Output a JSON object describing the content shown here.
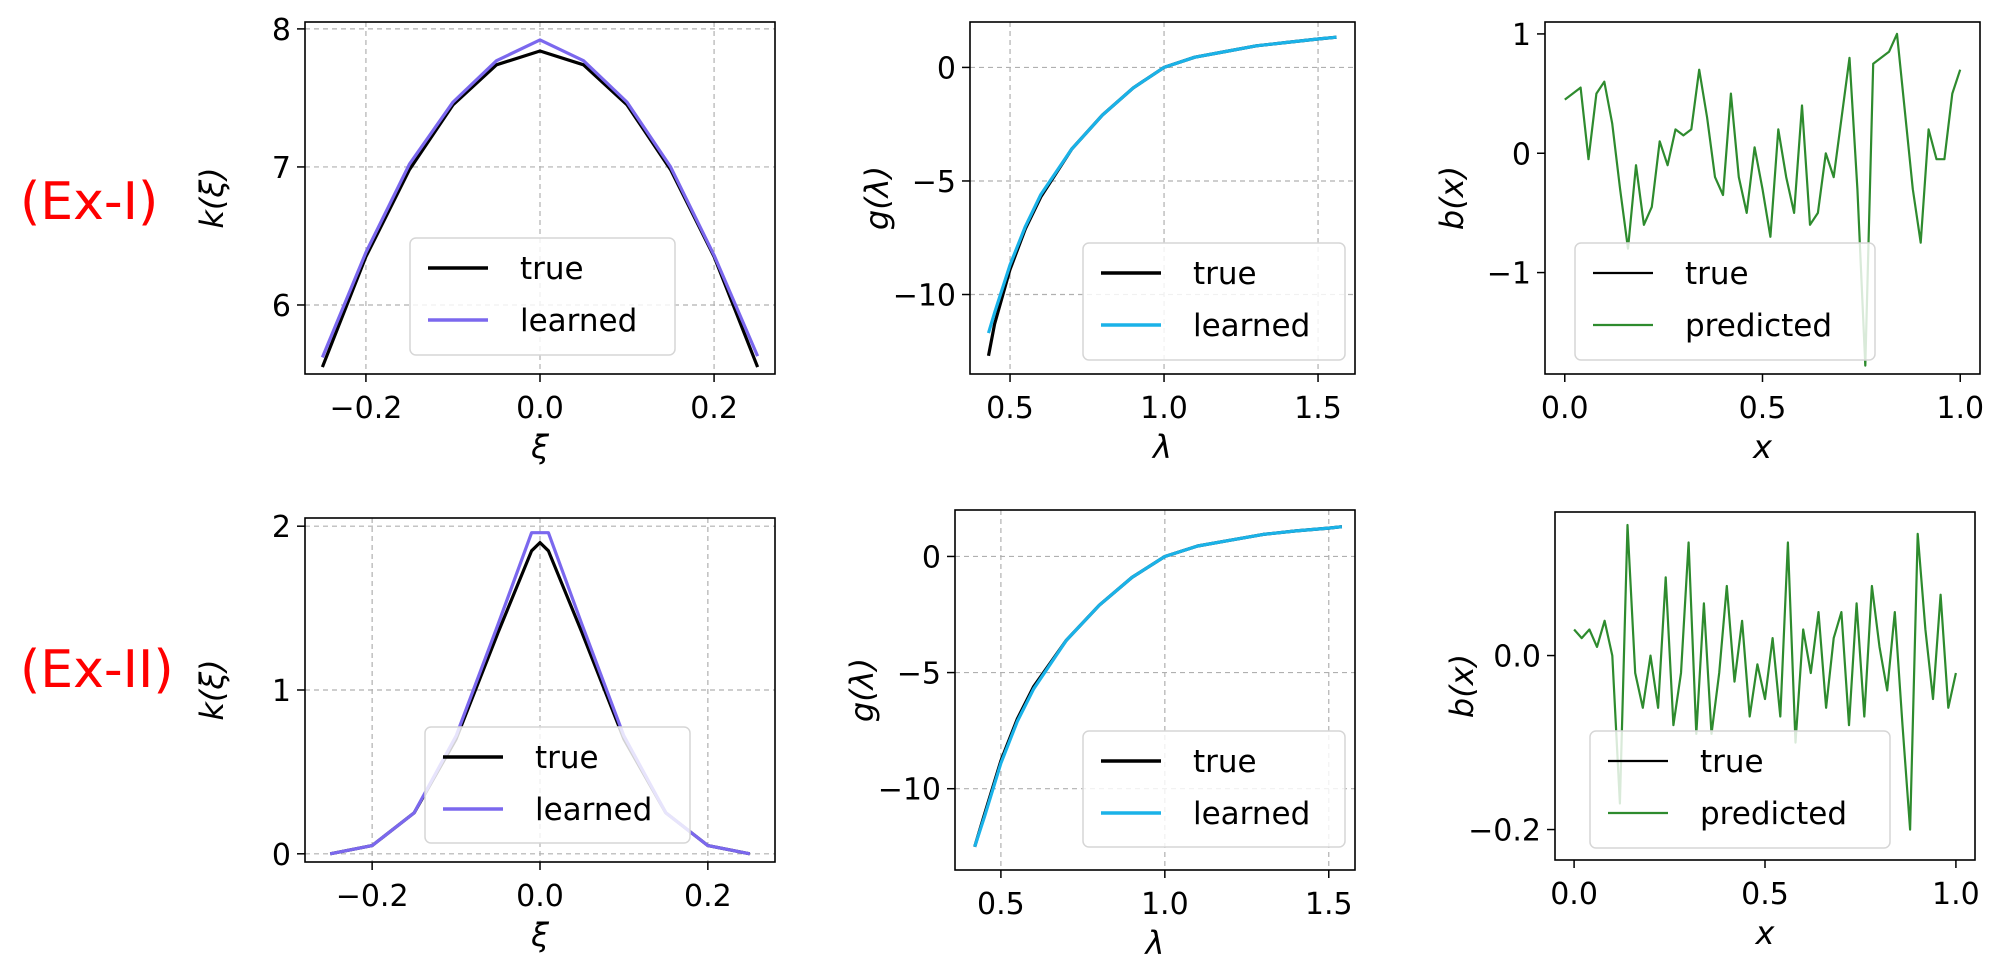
{
  "rows": [
    "(Ex-I)",
    "(Ex-II)"
  ],
  "colors": {
    "true": "#000000",
    "learned_k": "#7b68ee",
    "learned_g": "#1ab2e8",
    "predicted": "#2e8b2e",
    "row_label": "#ff0000"
  },
  "chart_data": [
    {
      "type": "line",
      "row": "(Ex-I)",
      "xlabel": "ξ",
      "ylabel": "k(ξ)",
      "xlim": [
        -0.27,
        0.27
      ],
      "ylim": [
        5.5,
        8.05
      ],
      "xticks": [
        -0.2,
        0.0,
        0.2
      ],
      "xtick_labels": [
        "−0.2",
        "0.0",
        "0.2"
      ],
      "yticks": [
        6,
        7,
        8
      ],
      "ytick_labels": [
        "6",
        "7",
        "8"
      ],
      "grid": true,
      "legend_position": "lower center",
      "series": [
        {
          "name": "true",
          "x": [
            -0.25,
            -0.2,
            -0.15,
            -0.1,
            -0.05,
            0,
            0.05,
            0.1,
            0.15,
            0.2,
            0.25
          ],
          "y": [
            5.55,
            6.35,
            6.98,
            7.45,
            7.74,
            7.84,
            7.74,
            7.45,
            6.98,
            6.35,
            5.55
          ]
        },
        {
          "name": "learned",
          "x": [
            -0.25,
            -0.2,
            -0.15,
            -0.1,
            -0.05,
            0,
            0.05,
            0.1,
            0.15,
            0.2,
            0.25
          ],
          "y": [
            5.62,
            6.38,
            7.02,
            7.47,
            7.77,
            7.92,
            7.77,
            7.47,
            7.0,
            6.36,
            5.63
          ]
        }
      ]
    },
    {
      "type": "line",
      "row": "(Ex-I)",
      "xlabel": "λ",
      "ylabel": "g(λ)",
      "xlim": [
        0.37,
        1.62
      ],
      "ylim": [
        -13.5,
        2.0
      ],
      "xticks": [
        0.5,
        1.0,
        1.5
      ],
      "xtick_labels": [
        "0.5",
        "1.0",
        "1.5"
      ],
      "yticks": [
        -10,
        -5,
        0
      ],
      "ytick_labels": [
        "−10",
        "−5",
        "0"
      ],
      "grid": true,
      "legend_position": "lower right",
      "series": [
        {
          "name": "true",
          "x": [
            0.43,
            0.45,
            0.5,
            0.55,
            0.6,
            0.7,
            0.8,
            0.9,
            1.0,
            1.1,
            1.2,
            1.3,
            1.4,
            1.5,
            1.56
          ],
          "y": [
            -12.7,
            -11.3,
            -8.9,
            -7.1,
            -5.7,
            -3.6,
            -2.1,
            -0.9,
            0.0,
            0.45,
            0.7,
            0.95,
            1.1,
            1.25,
            1.33
          ]
        },
        {
          "name": "learned",
          "x": [
            0.43,
            0.45,
            0.5,
            0.55,
            0.6,
            0.7,
            0.8,
            0.9,
            1.0,
            1.1,
            1.2,
            1.3,
            1.4,
            1.5,
            1.56
          ],
          "y": [
            -11.7,
            -10.8,
            -8.7,
            -7.0,
            -5.6,
            -3.6,
            -2.1,
            -0.9,
            0.0,
            0.45,
            0.7,
            0.95,
            1.1,
            1.25,
            1.33
          ]
        }
      ]
    },
    {
      "type": "line",
      "row": "(Ex-I)",
      "xlabel": "x",
      "ylabel": "b(x)",
      "xlim": [
        -0.05,
        1.05
      ],
      "ylim": [
        -1.85,
        1.1
      ],
      "xticks": [
        0.0,
        0.5,
        1.0
      ],
      "xtick_labels": [
        "0.0",
        "0.5",
        "1.0"
      ],
      "yticks": [
        -1,
        0,
        1
      ],
      "ytick_labels": [
        "−1",
        "0",
        "1"
      ],
      "grid": false,
      "legend_position": "lower left",
      "series": [
        {
          "name": "true",
          "x": [],
          "y": []
        },
        {
          "name": "predicted",
          "x": [
            0.0,
            0.02,
            0.04,
            0.06,
            0.08,
            0.1,
            0.12,
            0.14,
            0.16,
            0.18,
            0.2,
            0.22,
            0.24,
            0.26,
            0.28,
            0.3,
            0.32,
            0.34,
            0.36,
            0.38,
            0.4,
            0.42,
            0.44,
            0.46,
            0.48,
            0.5,
            0.52,
            0.54,
            0.56,
            0.58,
            0.6,
            0.62,
            0.64,
            0.66,
            0.68,
            0.7,
            0.72,
            0.74,
            0.76,
            0.78,
            0.8,
            0.82,
            0.84,
            0.86,
            0.88,
            0.9,
            0.92,
            0.94,
            0.96,
            0.98,
            1.0
          ],
          "y": [
            0.45,
            0.5,
            0.55,
            -0.05,
            0.5,
            0.6,
            0.25,
            -0.3,
            -0.8,
            -0.1,
            -0.6,
            -0.45,
            0.1,
            -0.1,
            0.2,
            0.15,
            0.2,
            0.7,
            0.3,
            -0.2,
            -0.35,
            0.5,
            -0.2,
            -0.5,
            0.05,
            -0.3,
            -0.7,
            0.2,
            -0.2,
            -0.5,
            0.4,
            -0.6,
            -0.5,
            0.0,
            -0.2,
            0.3,
            0.8,
            -0.3,
            -1.78,
            0.75,
            0.8,
            0.85,
            1.0,
            0.35,
            -0.3,
            -0.75,
            0.2,
            -0.05,
            -0.05,
            0.5,
            0.7
          ]
        }
      ]
    },
    {
      "type": "line",
      "row": "(Ex-II)",
      "xlabel": "ξ",
      "ylabel": "k(ξ)",
      "xlim": [
        -0.28,
        0.28
      ],
      "ylim": [
        -0.05,
        2.05
      ],
      "xticks": [
        -0.2,
        0.0,
        0.2
      ],
      "xtick_labels": [
        "−0.2",
        "0.0",
        "0.2"
      ],
      "yticks": [
        0,
        1,
        2
      ],
      "ytick_labels": [
        "0",
        "1",
        "2"
      ],
      "grid": true,
      "legend_position": "lower center",
      "series": [
        {
          "name": "true",
          "x": [
            -0.25,
            -0.2,
            -0.15,
            -0.1,
            -0.05,
            -0.01,
            0,
            0.01,
            0.05,
            0.1,
            0.15,
            0.2,
            0.25
          ],
          "y": [
            0.0,
            0.05,
            0.25,
            0.7,
            1.35,
            1.85,
            1.9,
            1.85,
            1.35,
            0.7,
            0.25,
            0.05,
            0.0
          ]
        },
        {
          "name": "learned",
          "x": [
            -0.25,
            -0.2,
            -0.15,
            -0.1,
            -0.05,
            -0.01,
            0,
            0.01,
            0.05,
            0.1,
            0.15,
            0.2,
            0.25
          ],
          "y": [
            0.0,
            0.05,
            0.25,
            0.72,
            1.4,
            1.96,
            1.96,
            1.96,
            1.4,
            0.72,
            0.25,
            0.05,
            0.0
          ]
        }
      ]
    },
    {
      "type": "line",
      "row": "(Ex-II)",
      "xlabel": "λ",
      "ylabel": "g(λ)",
      "xlim": [
        0.36,
        1.58
      ],
      "ylim": [
        -13.5,
        2.0
      ],
      "xticks": [
        0.5,
        1.0,
        1.5
      ],
      "xtick_labels": [
        "0.5",
        "1.0",
        "1.5"
      ],
      "yticks": [
        -10,
        -5,
        0
      ],
      "ytick_labels": [
        "−10",
        "−5",
        "0"
      ],
      "grid": true,
      "legend_position": "lower right",
      "series": [
        {
          "name": "true",
          "x": [
            0.42,
            0.45,
            0.5,
            0.55,
            0.6,
            0.7,
            0.8,
            0.9,
            1.0,
            1.1,
            1.2,
            1.3,
            1.4,
            1.5,
            1.54
          ],
          "y": [
            -12.5,
            -11.1,
            -8.8,
            -7.0,
            -5.6,
            -3.6,
            -2.1,
            -0.9,
            0.0,
            0.45,
            0.7,
            0.95,
            1.1,
            1.22,
            1.28
          ]
        },
        {
          "name": "learned",
          "x": [
            0.42,
            0.45,
            0.5,
            0.55,
            0.6,
            0.7,
            0.8,
            0.9,
            1.0,
            1.1,
            1.2,
            1.3,
            1.4,
            1.5,
            1.54
          ],
          "y": [
            -12.5,
            -11.2,
            -8.9,
            -7.1,
            -5.7,
            -3.6,
            -2.1,
            -0.9,
            0.0,
            0.45,
            0.7,
            0.95,
            1.1,
            1.22,
            1.28
          ]
        }
      ]
    },
    {
      "type": "line",
      "row": "(Ex-II)",
      "xlabel": "x",
      "ylabel": "b(x)",
      "xlim": [
        -0.05,
        1.05
      ],
      "ylim": [
        -0.235,
        0.165
      ],
      "xticks": [
        0.0,
        0.5,
        1.0
      ],
      "xtick_labels": [
        "0.0",
        "0.5",
        "1.0"
      ],
      "yticks": [
        -0.2,
        0.0
      ],
      "ytick_labels": [
        "−0.2",
        "0.0"
      ],
      "grid": false,
      "legend_position": "lower left",
      "series": [
        {
          "name": "true",
          "x": [],
          "y": []
        },
        {
          "name": "predicted",
          "x": [
            0.0,
            0.02,
            0.04,
            0.06,
            0.08,
            0.1,
            0.12,
            0.14,
            0.16,
            0.18,
            0.2,
            0.22,
            0.24,
            0.26,
            0.28,
            0.3,
            0.32,
            0.34,
            0.36,
            0.38,
            0.4,
            0.42,
            0.44,
            0.46,
            0.48,
            0.5,
            0.52,
            0.54,
            0.56,
            0.58,
            0.6,
            0.62,
            0.64,
            0.66,
            0.68,
            0.7,
            0.72,
            0.74,
            0.76,
            0.78,
            0.8,
            0.82,
            0.84,
            0.86,
            0.88,
            0.9,
            0.92,
            0.94,
            0.96,
            0.98,
            1.0
          ],
          "y": [
            0.03,
            0.02,
            0.03,
            0.01,
            0.04,
            0.0,
            -0.17,
            0.15,
            -0.02,
            -0.06,
            0.0,
            -0.06,
            0.09,
            -0.08,
            -0.02,
            0.13,
            -0.09,
            0.06,
            -0.09,
            -0.02,
            0.08,
            -0.03,
            0.04,
            -0.07,
            -0.01,
            -0.05,
            0.02,
            -0.07,
            0.13,
            -0.1,
            0.03,
            -0.02,
            0.05,
            -0.06,
            0.02,
            0.05,
            -0.08,
            0.06,
            -0.07,
            0.08,
            0.01,
            -0.04,
            0.05,
            -0.08,
            -0.2,
            0.14,
            0.03,
            -0.05,
            0.07,
            -0.06,
            -0.02
          ]
        }
      ]
    }
  ]
}
